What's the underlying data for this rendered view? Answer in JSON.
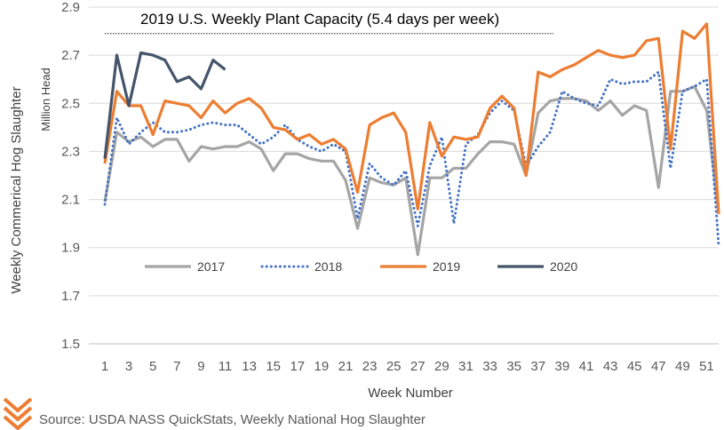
{
  "chart_data": {
    "type": "line",
    "ylabel": "Weekly Commerical Hog Slaughter",
    "y_unit_label": "Million Head",
    "xlabel": "Week Number",
    "ylim": [
      1.5,
      2.9
    ],
    "y_ticks": [
      "1.5",
      "1.7",
      "1.9",
      "2.1",
      "2.3",
      "2.5",
      "2.7",
      "2.9"
    ],
    "xlim": [
      1,
      52
    ],
    "x_ticks": [
      "1",
      "3",
      "5",
      "7",
      "9",
      "11",
      "13",
      "15",
      "17",
      "19",
      "21",
      "23",
      "25",
      "27",
      "29",
      "31",
      "33",
      "35",
      "37",
      "39",
      "41",
      "43",
      "45",
      "47",
      "49",
      "51"
    ],
    "grid": "horizontal",
    "legend_position": "bottom-left",
    "reference_line": {
      "label": "2019  U.S. Weekly Plant Capacity (5.4 days per week)",
      "value": 2.79,
      "color": "#404040"
    },
    "series": [
      {
        "name": "2017",
        "color": "#A5A5A5",
        "style": "solid",
        "values": [
          2.09,
          2.38,
          2.34,
          2.36,
          2.32,
          2.35,
          2.35,
          2.26,
          2.32,
          2.31,
          2.32,
          2.32,
          2.34,
          2.31,
          2.22,
          2.29,
          2.29,
          2.27,
          2.26,
          2.26,
          2.18,
          1.98,
          2.19,
          2.17,
          2.16,
          2.19,
          1.87,
          2.19,
          2.19,
          2.23,
          2.23,
          2.29,
          2.34,
          2.34,
          2.33,
          2.2,
          2.46,
          2.51,
          2.52,
          2.52,
          2.51,
          2.47,
          2.51,
          2.45,
          2.49,
          2.47,
          2.15,
          2.55,
          2.55,
          2.57,
          2.47,
          2.04
        ]
      },
      {
        "name": "2018",
        "color": "#4472C4",
        "style": "dotted",
        "values": [
          2.08,
          2.44,
          2.33,
          2.38,
          2.42,
          2.38,
          2.38,
          2.39,
          2.41,
          2.42,
          2.41,
          2.41,
          2.37,
          2.33,
          2.36,
          2.41,
          2.35,
          2.32,
          2.3,
          2.33,
          2.3,
          2.02,
          2.25,
          2.19,
          2.16,
          2.22,
          1.99,
          2.24,
          2.36,
          2.0,
          2.33,
          2.37,
          2.46,
          2.51,
          2.47,
          2.24,
          2.32,
          2.38,
          2.55,
          2.52,
          2.5,
          2.49,
          2.6,
          2.58,
          2.59,
          2.59,
          2.63,
          2.23,
          2.55,
          2.57,
          2.6,
          1.91
        ]
      },
      {
        "name": "2019",
        "color": "#ED7D31",
        "style": "solid",
        "values": [
          2.25,
          2.55,
          2.49,
          2.49,
          2.37,
          2.51,
          2.5,
          2.49,
          2.44,
          2.51,
          2.46,
          2.5,
          2.52,
          2.48,
          2.4,
          2.39,
          2.35,
          2.37,
          2.33,
          2.35,
          2.31,
          2.13,
          2.41,
          2.44,
          2.46,
          2.38,
          2.06,
          2.42,
          2.28,
          2.36,
          2.35,
          2.36,
          2.48,
          2.53,
          2.48,
          2.2,
          2.63,
          2.61,
          2.64,
          2.66,
          2.69,
          2.72,
          2.7,
          2.69,
          2.7,
          2.76,
          2.77,
          2.31,
          2.8,
          2.77,
          2.83,
          2.04
        ]
      },
      {
        "name": "2020",
        "color": "#44546A",
        "style": "solid",
        "values": [
          2.27,
          2.7,
          2.49,
          2.71,
          2.7,
          2.68,
          2.59,
          2.61,
          2.56,
          2.68,
          2.64
        ]
      }
    ]
  },
  "source_text": "Source:  USDA NASS  QuickStats, Weekly National Hog Slaughter",
  "logo": {
    "name": "chevron-logo",
    "color": "#ED7D31"
  }
}
